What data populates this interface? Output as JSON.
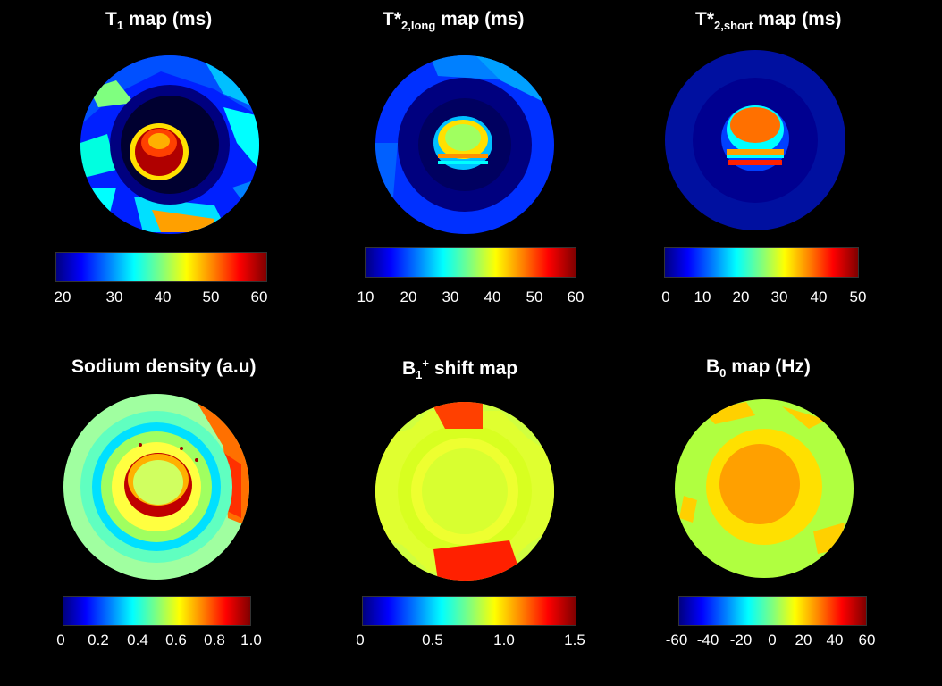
{
  "figure": {
    "panels": [
      {
        "id": "t1",
        "title_main": "T",
        "title_sub": "1",
        "title_sup": "",
        "title_rest": " map (ms)",
        "colorbar_ticks": [
          "20",
          "30",
          "40",
          "50",
          "60"
        ],
        "colorbar_range": [
          20,
          60
        ],
        "colormap": "jet"
      },
      {
        "id": "t2long",
        "title_main": "T*",
        "title_sub": "2,long",
        "title_sup": "",
        "title_rest": " map (ms)",
        "colorbar_ticks": [
          "10",
          "20",
          "30",
          "40",
          "50",
          "60"
        ],
        "colorbar_range": [
          10,
          60
        ],
        "colormap": "jet"
      },
      {
        "id": "t2short",
        "title_main": "T*",
        "title_sub": "2,short",
        "title_sup": "",
        "title_rest": " map (ms)",
        "colorbar_ticks": [
          "0",
          "10",
          "20",
          "30",
          "40",
          "50"
        ],
        "colorbar_range": [
          0,
          50
        ],
        "colormap": "jet"
      },
      {
        "id": "sodium",
        "title_main": "Sodium density (a.u)",
        "title_sub": "",
        "title_sup": "",
        "title_rest": "",
        "colorbar_ticks": [
          "0",
          "0.2",
          "0.4",
          "0.6",
          "0.8",
          "1.0"
        ],
        "colorbar_range": [
          0,
          1
        ],
        "colormap": "jet"
      },
      {
        "id": "b1",
        "title_main": "B",
        "title_sub": "1",
        "title_sup": "+",
        "title_rest": " shift map",
        "colorbar_ticks": [
          "0",
          "0.5",
          "1.0",
          "1.5"
        ],
        "colorbar_range": [
          0,
          1.5
        ],
        "colormap": "jet"
      },
      {
        "id": "b0",
        "title_main": "B",
        "title_sub": "0",
        "title_sup": "",
        "title_rest": " map (Hz)",
        "colorbar_ticks": [
          "-60",
          "-40",
          "-20",
          "0",
          "20",
          "40",
          "60"
        ],
        "colorbar_range": [
          -60,
          60
        ],
        "colormap": "jet"
      }
    ],
    "colors": {
      "background": "#000000",
      "jet_darkblue": "#00007f",
      "jet_red": "#7f0000"
    }
  }
}
